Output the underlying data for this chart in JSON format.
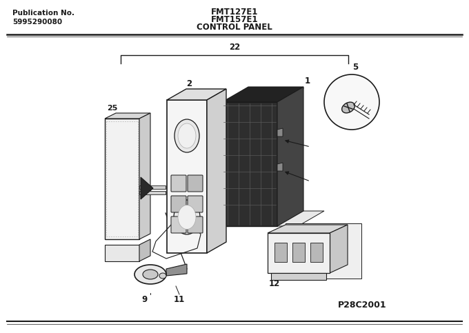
{
  "title_left_line1": "Publication No.",
  "title_left_line2": "5995290080",
  "title_center_line1": "FMT127E1",
  "title_center_line2": "FMT157E1",
  "title_center_line3": "CONTROL PANEL",
  "watermark": "P28C2001",
  "bg_color": "#ffffff",
  "line_color": "#1a1a1a",
  "gray_light": "#e8e8e8",
  "gray_mid": "#c8c8c8",
  "gray_dark": "#888888",
  "board_color": "#3a3a3a",
  "board_grid": "#6a6a6a"
}
